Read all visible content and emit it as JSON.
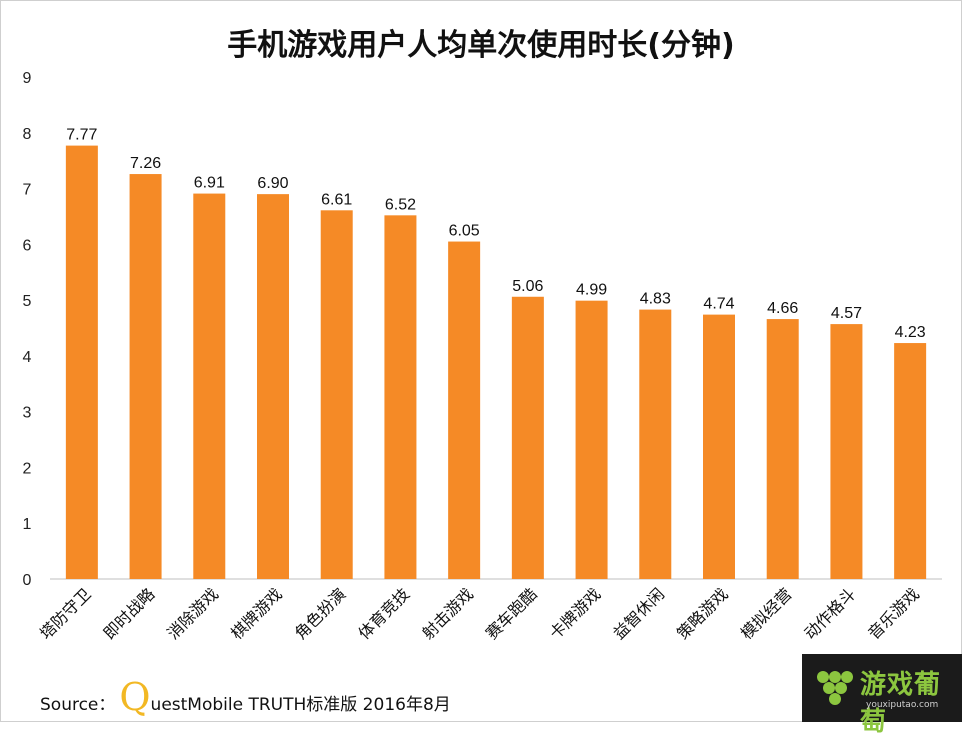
{
  "title": "手机游戏用户人均单次使用时长(分钟)",
  "source": {
    "prefix": "Source：",
    "q_letter": "Q",
    "rest": "uestMobile TRUTH标准版 2016年8月"
  },
  "logo": {
    "text": "游戏葡萄",
    "url": "youxiputao.com",
    "color": "#8cc63f"
  },
  "colors": {
    "bar": "#f58a26",
    "axis": "#bfbfbf"
  },
  "chart_data": {
    "type": "bar",
    "title": "手机游戏用户人均单次使用时长(分钟)",
    "categories": [
      "塔防守卫",
      "即时战略",
      "消除游戏",
      "棋牌游戏",
      "角色扮演",
      "体育竞技",
      "射击游戏",
      "赛车跑酷",
      "卡牌游戏",
      "益智休闲",
      "策略游戏",
      "模拟经营",
      "动作格斗",
      "音乐游戏"
    ],
    "values": [
      7.77,
      7.26,
      6.91,
      6.9,
      6.61,
      6.52,
      6.05,
      5.06,
      4.99,
      4.83,
      4.74,
      4.66,
      4.57,
      4.23
    ],
    "value_labels": [
      "7.77",
      "7.26",
      "6.91",
      "6.90",
      "6.61",
      "6.52",
      "6.05",
      "5.06",
      "4.99",
      "4.83",
      "4.74",
      "4.66",
      "4.57",
      "4.23"
    ],
    "ylim": [
      0,
      9
    ],
    "yticks": [
      "0",
      "1",
      "2",
      "3",
      "4",
      "5",
      "6",
      "7",
      "8",
      "9"
    ],
    "xlabel": "",
    "ylabel": "",
    "grid": false,
    "legend": "none"
  }
}
